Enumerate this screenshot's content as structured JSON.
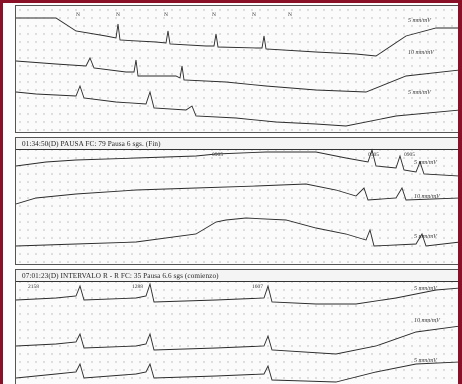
{
  "frame": {
    "border_color": "#8a1028",
    "trace_color": "#2a2a2a"
  },
  "strips": [
    {
      "header": "",
      "beat_labels": [
        "N",
        "N",
        "N",
        "N",
        "N",
        "N"
      ],
      "scales": [
        "5 mm/mV",
        "10 mm/mV",
        "5 mm/mV"
      ]
    },
    {
      "header": "01:34:50(D) PAUSA   FC: 79  Pausa 6 sgs. (Fin)",
      "beat_labels": [
        "0905",
        "0905",
        "0905"
      ],
      "scales": [
        "5 mm/mV",
        "10 mm/mV",
        "5 mm/mV"
      ]
    },
    {
      "header": "07:01:23(D) INTERVALO R - R   FC: 35  Pausa 6.6 sgs (comienzo)",
      "beat_labels": [
        "2158",
        "1288",
        "1607"
      ],
      "scales": [
        "5 mm/mV",
        "10 mm/mV",
        "5 mm/mV"
      ]
    }
  ]
}
